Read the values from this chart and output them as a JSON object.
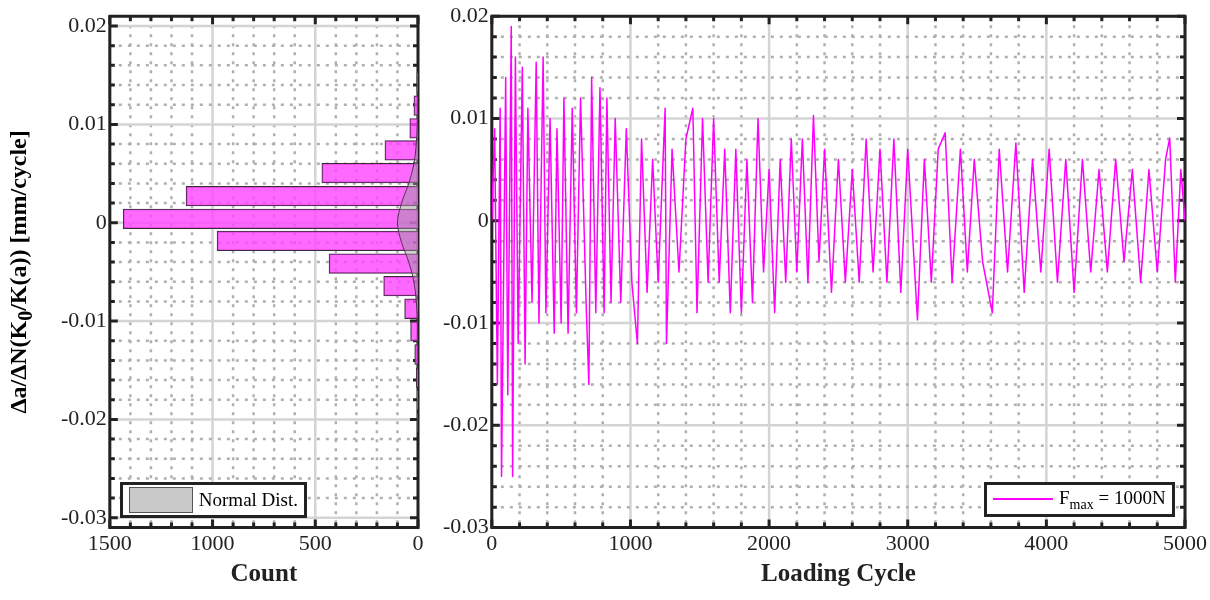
{
  "chart_data": [
    {
      "type": "histogram",
      "orientation": "horizontal",
      "ylabel": "Δa/ΔN(K$_{0}$/K(a)) [mm/cycle]",
      "xlabel": "Count",
      "xlim": [
        1500,
        0
      ],
      "xticks": [
        0,
        {
          "value": 100,
          "label": null
        },
        {
          "value": 200,
          "label": null
        },
        {
          "value": 300,
          "label": null
        },
        {
          "value": 400,
          "label": null
        },
        500,
        {
          "value": 600,
          "label": null
        },
        {
          "value": 700,
          "label": null
        },
        {
          "value": 800,
          "label": null
        },
        {
          "value": 900,
          "label": null
        },
        1000,
        {
          "value": 1100,
          "label": null
        },
        {
          "value": 1200,
          "label": null
        },
        {
          "value": 1300,
          "label": null
        },
        {
          "value": 1400,
          "label": null
        },
        1500
      ],
      "ylim": [
        -0.03,
        0.02
      ],
      "yticks": [
        -0.03,
        {
          "value": -0.028,
          "label": null
        },
        {
          "value": -0.026,
          "label": null
        },
        {
          "value": -0.024,
          "label": null
        },
        {
          "value": -0.022,
          "label": null
        },
        -0.02,
        {
          "value": -0.018,
          "label": null
        },
        {
          "value": -0.016,
          "label": null
        },
        {
          "value": -0.014,
          "label": null
        },
        {
          "value": -0.012,
          "label": null
        },
        -0.01,
        {
          "value": -0.008,
          "label": null
        },
        {
          "value": -0.006,
          "label": null
        },
        {
          "value": -0.004,
          "label": null
        },
        {
          "value": -0.002,
          "label": null
        },
        0,
        {
          "value": 0.002,
          "label": null
        },
        {
          "value": 0.004,
          "label": null
        },
        {
          "value": 0.006,
          "label": null
        },
        {
          "value": 0.008,
          "label": null
        },
        0.01,
        {
          "value": 0.012,
          "label": null
        },
        {
          "value": 0.014,
          "label": null
        },
        {
          "value": 0.016,
          "label": null
        },
        {
          "value": 0.018,
          "label": null
        },
        0.02
      ],
      "grid": true,
      "legend": "bottom left",
      "series": [
        {
          "type": "histogram",
          "color": "#ff44ff",
          "bins": [
            -0.0215,
            -0.0192,
            -0.0169,
            -0.0146,
            -0.0122,
            -0.0099,
            -0.0076,
            -0.0053,
            -0.003,
            -0.0007,
            0.0015,
            0.0039,
            0.0062,
            0.0085,
            0.0107,
            0.0131,
            0.0154
          ],
          "values": [
            2,
            4,
            8,
            16,
            36,
            65,
            167,
            433,
            978,
            1435,
            1129,
            468,
            161,
            40,
            20,
            6
          ]
        },
        {
          "type": "area",
          "name": "Normal Dist.",
          "color": "#999999",
          "x": [
            -0.015,
            -0.012,
            -0.009,
            -0.006,
            -0.004,
            -0.002,
            0,
            0.002,
            0.004,
            0.006,
            0.009,
            0.012,
            0.015
          ],
          "values": [
            0,
            1,
            5,
            20,
            45,
            80,
            100,
            80,
            45,
            20,
            5,
            1,
            0
          ]
        }
      ]
    },
    {
      "type": "line",
      "xlabel": "Loading Cycle",
      "xlim": [
        0,
        5000
      ],
      "xticks": [
        0,
        {
          "value": 200,
          "label": null
        },
        {
          "value": 400,
          "label": null
        },
        {
          "value": 600,
          "label": null
        },
        {
          "value": 800,
          "label": null
        },
        1000,
        {
          "value": 1200,
          "label": null
        },
        {
          "value": 1400,
          "label": null
        },
        {
          "value": 1600,
          "label": null
        },
        {
          "value": 1800,
          "label": null
        },
        2000,
        {
          "value": 2200,
          "label": null
        },
        {
          "value": 2400,
          "label": null
        },
        {
          "value": 2600,
          "label": null
        },
        {
          "value": 2800,
          "label": null
        },
        3000,
        {
          "value": 3200,
          "label": null
        },
        {
          "value": 3400,
          "label": null
        },
        {
          "value": 3600,
          "label": null
        },
        {
          "value": 3800,
          "label": null
        },
        4000,
        {
          "value": 4200,
          "label": null
        },
        {
          "value": 4400,
          "label": null
        },
        {
          "value": 4600,
          "label": null
        },
        {
          "value": 4800,
          "label": null
        },
        5000
      ],
      "ylim": [
        -0.03,
        0.02
      ],
      "yticks": [
        -0.03,
        {
          "value": -0.028,
          "label": null
        },
        {
          "value": -0.026,
          "label": null
        },
        {
          "value": -0.024,
          "label": null
        },
        {
          "value": -0.022,
          "label": null
        },
        -0.02,
        {
          "value": -0.018,
          "label": null
        },
        {
          "value": -0.016,
          "label": null
        },
        {
          "value": -0.014,
          "label": null
        },
        {
          "value": -0.012,
          "label": null
        },
        -0.01,
        {
          "value": -0.008,
          "label": null
        },
        {
          "value": -0.006,
          "label": null
        },
        {
          "value": -0.004,
          "label": null
        },
        {
          "value": -0.002,
          "label": null
        },
        0,
        {
          "value": 0.002,
          "label": null
        },
        {
          "value": 0.004,
          "label": null
        },
        {
          "value": 0.006,
          "label": null
        },
        {
          "value": 0.008,
          "label": null
        },
        0.01,
        {
          "value": 0.012,
          "label": null
        },
        {
          "value": 0.014,
          "label": null
        },
        {
          "value": 0.016,
          "label": null
        },
        {
          "value": 0.018,
          "label": null
        },
        0.02
      ],
      "grid": true,
      "legend": "bottom right",
      "x": [
        0,
        20,
        40,
        60,
        70,
        100,
        115,
        140,
        150,
        170,
        190,
        220,
        240,
        260,
        290,
        320,
        340,
        370,
        390,
        420,
        450,
        470,
        500,
        520,
        550,
        580,
        610,
        640,
        680,
        700,
        720,
        750,
        780,
        810,
        830,
        860,
        890,
        930,
        970,
        1010,
        1050,
        1080,
        1120,
        1160,
        1200,
        1250,
        1260,
        1300,
        1350,
        1400,
        1450,
        1480,
        1520,
        1560,
        1600,
        1640,
        1680,
        1720,
        1760,
        1800,
        1840,
        1880,
        1920,
        1960,
        2000,
        2040,
        2080,
        2120,
        2160,
        2200,
        2240,
        2280,
        2320,
        2360,
        2400,
        2450,
        2500,
        2550,
        2600,
        2650,
        2700,
        2750,
        2800,
        2850,
        2900,
        2950,
        3000,
        3070,
        3120,
        3170,
        3220,
        3270,
        3320,
        3380,
        3430,
        3480,
        3540,
        3610,
        3660,
        3720,
        3780,
        3840,
        3900,
        3960,
        4020,
        4080,
        4140,
        4200,
        4260,
        4320,
        4380,
        4440,
        4500,
        4560,
        4620,
        4680,
        4740,
        4800,
        4860,
        4890,
        4930,
        4970,
        5000
      ],
      "series": [
        {
          "name": "F$_{max}$ = 1000N",
          "color": "#ff00ff",
          "values": [
            0,
            0.009,
            -0.016,
            0.011,
            -0.025,
            0.014,
            -0.017,
            0.019,
            -0.025,
            0.016,
            -0.012,
            0.015,
            -0.014,
            0.011,
            -0.008,
            0.0155,
            -0.01,
            0.016,
            -0.009,
            0.01,
            -0.011,
            0.009,
            -0.01,
            0.012,
            -0.011,
            0.011,
            -0.009,
            0.012,
            -0.008,
            -0.016,
            0.014,
            -0.009,
            0.013,
            -0.009,
            0.012,
            -0.008,
            0.01,
            -0.008,
            0.009,
            -0.006,
            -0.012,
            0.008,
            -0.007,
            0.006,
            -0.006,
            0.011,
            -0.012,
            0.007,
            -0.005,
            0.008,
            0.011,
            -0.009,
            0.01,
            -0.006,
            0.01,
            -0.006,
            0.007,
            -0.009,
            0.007,
            -0.009,
            0.006,
            -0.008,
            0.01,
            -0.005,
            0.005,
            -0.009,
            0.006,
            -0.006,
            0.008,
            -0.005,
            0.008,
            -0.006,
            0.0103,
            -0.004,
            0.007,
            -0.007,
            0.006,
            -0.006,
            0.005,
            -0.006,
            0.008,
            -0.005,
            0.007,
            -0.006,
            0.008,
            -0.007,
            0.007,
            -0.0097,
            0.006,
            -0.006,
            0.007,
            0.0086,
            -0.006,
            0.007,
            -0.005,
            0.006,
            -0.004,
            -0.009,
            0.007,
            -0.005,
            0.0076,
            -0.007,
            0.006,
            -0.005,
            0.007,
            -0.006,
            0.006,
            -0.007,
            0.006,
            -0.005,
            0.005,
            -0.005,
            0.006,
            -0.004,
            0.005,
            -0.006,
            0.005,
            -0.005,
            0.006,
            0.0081,
            -0.006,
            0.005,
            0
          ]
        }
      ]
    }
  ]
}
